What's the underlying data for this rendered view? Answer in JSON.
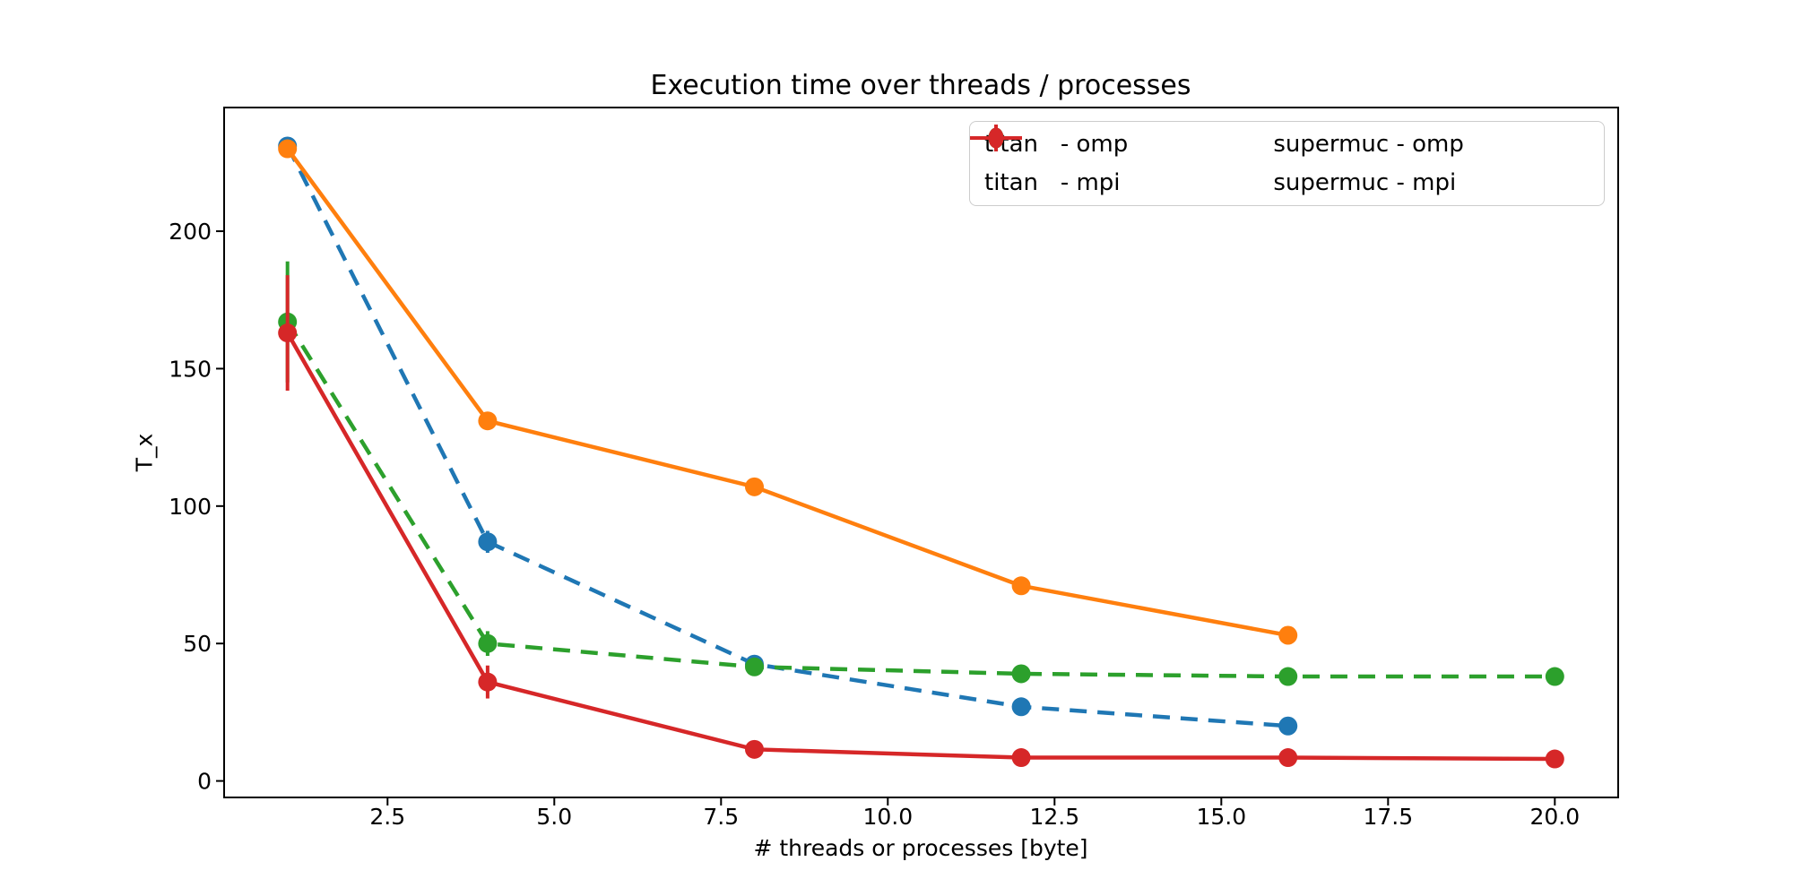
{
  "chart_data": {
    "type": "line",
    "title": "Execution time over threads / processes",
    "xlabel": "# threads or processes [byte]",
    "ylabel": "T_x",
    "xlim": [
      0.05,
      20.95
    ],
    "ylim": [
      -6,
      245
    ],
    "xticks": [
      2.5,
      5.0,
      7.5,
      10.0,
      12.5,
      15.0,
      17.5,
      20.0
    ],
    "xtick_labels": [
      "2.5",
      "5.0",
      "7.5",
      "10.0",
      "12.5",
      "15.0",
      "17.5",
      "20.0"
    ],
    "yticks": [
      0,
      50,
      100,
      150,
      200
    ],
    "ytick_labels": [
      "0",
      "50",
      "100",
      "150",
      "200"
    ],
    "grid": false,
    "legend_position": "upper right",
    "legend_columns": 2,
    "marker": "circle",
    "series": [
      {
        "name": "titan-omp",
        "label": "titan   - omp",
        "color": "#1f77b4",
        "linestyle": "dashed",
        "x": [
          1,
          4,
          8,
          12,
          16
        ],
        "y": [
          231,
          87,
          42.5,
          27,
          20
        ],
        "yerr": [
          3,
          4,
          2,
          1.5,
          1.5
        ]
      },
      {
        "name": "titan-mpi",
        "label": "titan   - mpi",
        "color": "#ff7f0e",
        "linestyle": "solid",
        "x": [
          1,
          4,
          8,
          12,
          16
        ],
        "y": [
          230,
          131,
          107,
          71,
          53
        ],
        "yerr": [
          3,
          2,
          1.5,
          1.5,
          1.5
        ]
      },
      {
        "name": "supermuc-omp",
        "label": "supermuc - omp",
        "color": "#2ca02c",
        "linestyle": "dashed",
        "x": [
          1,
          4,
          8,
          12,
          16,
          20
        ],
        "y": [
          167,
          50,
          41.5,
          39,
          38,
          38
        ],
        "yerr": [
          22,
          4.5,
          2,
          1.5,
          1.5,
          1.5
        ]
      },
      {
        "name": "supermuc-mpi",
        "label": "supermuc - mpi",
        "color": "#d62728",
        "linestyle": "solid",
        "x": [
          1,
          4,
          8,
          12,
          16,
          20
        ],
        "y": [
          163,
          36,
          11.5,
          8.5,
          8.5,
          8
        ],
        "yerr": [
          21,
          6,
          2.5,
          1.5,
          1.5,
          1.5
        ]
      }
    ]
  }
}
